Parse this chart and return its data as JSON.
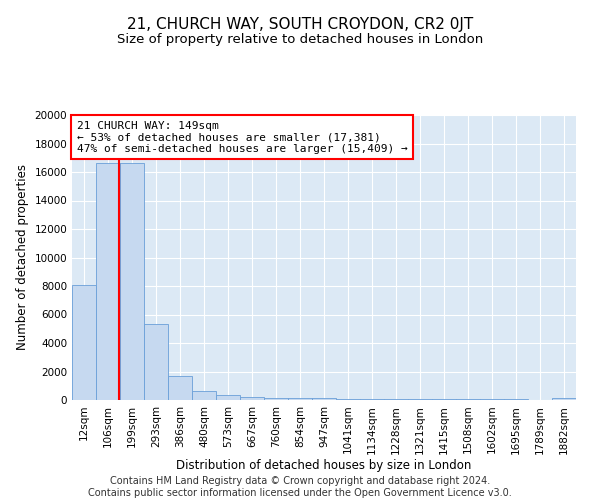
{
  "title": "21, CHURCH WAY, SOUTH CROYDON, CR2 0JT",
  "subtitle": "Size of property relative to detached houses in London",
  "xlabel": "Distribution of detached houses by size in London",
  "ylabel": "Number of detached properties",
  "categories": [
    "12sqm",
    "106sqm",
    "199sqm",
    "293sqm",
    "386sqm",
    "480sqm",
    "573sqm",
    "667sqm",
    "760sqm",
    "854sqm",
    "947sqm",
    "1041sqm",
    "1134sqm",
    "1228sqm",
    "1321sqm",
    "1415sqm",
    "1508sqm",
    "1602sqm",
    "1695sqm",
    "1789sqm",
    "1882sqm"
  ],
  "values": [
    8100,
    16650,
    16650,
    5300,
    1700,
    650,
    320,
    220,
    170,
    130,
    110,
    95,
    85,
    75,
    65,
    55,
    50,
    45,
    40,
    35,
    160
  ],
  "bar_color": "#c6d9f0",
  "bar_edge_color": "#6a9fd8",
  "red_line_x": 1.47,
  "annotation_text": "21 CHURCH WAY: 149sqm\n← 53% of detached houses are smaller (17,381)\n47% of semi-detached houses are larger (15,409) →",
  "annotation_box_color": "white",
  "annotation_box_edge_color": "red",
  "ylim": [
    0,
    20000
  ],
  "yticks": [
    0,
    2000,
    4000,
    6000,
    8000,
    10000,
    12000,
    14000,
    16000,
    18000,
    20000
  ],
  "background_color": "#dce9f5",
  "grid_color": "white",
  "footer": "Contains HM Land Registry data © Crown copyright and database right 2024.\nContains public sector information licensed under the Open Government Licence v3.0.",
  "title_fontsize": 11,
  "subtitle_fontsize": 9.5,
  "axis_label_fontsize": 8.5,
  "tick_fontsize": 7.5,
  "annotation_fontsize": 8,
  "footer_fontsize": 7
}
